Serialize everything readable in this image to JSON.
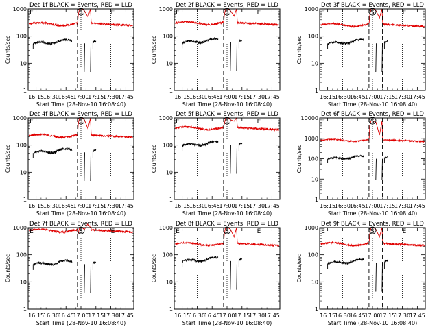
{
  "figure": {
    "x_tick_labels": [
      "16:15",
      "16:30",
      "16:45",
      "17:00",
      "17:15",
      "17:30",
      "17:45"
    ],
    "x_tick_times_min": [
      975,
      990,
      1005,
      1020,
      1035,
      1050,
      1065
    ],
    "x_range_min": [
      967,
      1073
    ],
    "y_axis_label": "Counts/sec",
    "x_axis_label": "Start Time (28-Nov-10 16:08:40)",
    "dotted_lines_min": [
      990,
      1020,
      1050
    ],
    "dashed_lines_min": [
      1016.5,
      1030
    ],
    "markers": [
      {
        "label": "E",
        "time_min": 968.5
      },
      {
        "label": "S",
        "time_min": 1020
      },
      {
        "label": "E",
        "time_min": 1050
      }
    ],
    "colors": {
      "events": "#000000",
      "lld": "#e00000",
      "axes": "#000000"
    }
  },
  "chart_data": [
    {
      "type": "line",
      "title": "Det 1f BLACK = Events, RED = LLD",
      "scale": "log",
      "ylim": [
        1,
        1000
      ],
      "y_tick_labels": [
        "1",
        "10",
        "100",
        "1000"
      ],
      "lld_level": 280,
      "events_level": 60,
      "events_segments": [
        [
          972,
          1011
        ],
        [
          1023.3,
          1023.8
        ],
        [
          1029.6,
          1030
        ],
        [
          1032,
          1035
        ]
      ],
      "flare_peak": 1000
    },
    {
      "type": "line",
      "title": "Det 2f BLACK = Events, RED = LLD",
      "scale": "log",
      "ylim": [
        1,
        1000
      ],
      "y_tick_labels": [
        "1",
        "10",
        "100",
        "1000"
      ],
      "lld_level": 300,
      "events_level": 65,
      "events_segments": [
        [
          975,
          1011
        ],
        [
          1023.3,
          1023.8
        ],
        [
          1029.6,
          1030
        ],
        [
          1032,
          1035
        ]
      ],
      "flare_peak": 1000
    },
    {
      "type": "line",
      "title": "Det 3f BLACK = Events, RED = LLD",
      "scale": "log",
      "ylim": [
        1,
        1000
      ],
      "y_tick_labels": [
        "1",
        "10",
        "100",
        "1000"
      ],
      "lld_level": 260,
      "events_level": 60,
      "events_segments": [
        [
          975,
          1011
        ],
        [
          1023.3,
          1023.8
        ],
        [
          1029.6,
          1030
        ],
        [
          1032,
          1035
        ]
      ],
      "flare_peak": 1000
    },
    {
      "type": "line",
      "title": "Det 4f BLACK = Events, RED = LLD",
      "scale": "log",
      "ylim": [
        1,
        1000
      ],
      "y_tick_labels": [
        "1",
        "10",
        "100",
        "1000"
      ],
      "lld_level": 220,
      "events_level": 60,
      "events_segments": [
        [
          972,
          1011
        ],
        [
          1023.3,
          1023.8
        ],
        [
          1029.6,
          1030
        ],
        [
          1032,
          1035
        ]
      ],
      "flare_peak": 1000
    },
    {
      "type": "line",
      "title": "Det 5f BLACK = Events, RED = LLD",
      "scale": "log",
      "ylim": [
        1,
        1000
      ],
      "y_tick_labels": [
        "1",
        "10",
        "100",
        "1000"
      ],
      "lld_level": 420,
      "events_level": 110,
      "events_segments": [
        [
          975,
          1011
        ],
        [
          1023.3,
          1023.8
        ],
        [
          1029.6,
          1030
        ],
        [
          1032,
          1035
        ]
      ],
      "flare_peak": 1000
    },
    {
      "type": "line",
      "title": "Det 6f BLACK = Events, RED = LLD",
      "scale": "log",
      "ylim": [
        1,
        10000
      ],
      "y_tick_labels": [
        "1",
        "10",
        "100",
        "1000",
        "10000"
      ],
      "lld_level": 800,
      "events_level": 110,
      "events_segments": [
        [
          975,
          1011
        ],
        [
          1023.3,
          1023.8
        ],
        [
          1029.6,
          1030
        ],
        [
          1032,
          1035
        ]
      ],
      "flare_peak": 7000
    },
    {
      "type": "line",
      "title": "Det 7f BLACK = Events, RED = LLD",
      "scale": "log",
      "ylim": [
        1,
        1000
      ],
      "y_tick_labels": [
        "1",
        "10",
        "100",
        "1000"
      ],
      "lld_level": 780,
      "events_level": 50,
      "events_segments": [
        [
          972,
          1011
        ],
        [
          1023.3,
          1023.8
        ],
        [
          1029.6,
          1030
        ],
        [
          1032,
          1035
        ]
      ],
      "flare_peak": 1000
    },
    {
      "type": "line",
      "title": "Det 8f BLACK = Events, RED = LLD",
      "scale": "log",
      "ylim": [
        1,
        1000
      ],
      "y_tick_labels": [
        "1",
        "10",
        "100",
        "1000"
      ],
      "lld_level": 250,
      "events_level": 65,
      "events_segments": [
        [
          975,
          1011
        ],
        [
          1023.3,
          1023.8
        ],
        [
          1029.6,
          1030
        ],
        [
          1032,
          1035
        ]
      ],
      "flare_peak": 1000
    },
    {
      "type": "line",
      "title": "Det 9f BLACK = Events, RED = LLD",
      "scale": "log",
      "ylim": [
        1,
        1000
      ],
      "y_tick_labels": [
        "1",
        "10",
        "100",
        "1000"
      ],
      "lld_level": 250,
      "events_level": 55,
      "events_segments": [
        [
          975,
          1011
        ],
        [
          1023.3,
          1023.8
        ],
        [
          1029.6,
          1030
        ],
        [
          1032,
          1035
        ]
      ],
      "flare_peak": 1000
    }
  ]
}
